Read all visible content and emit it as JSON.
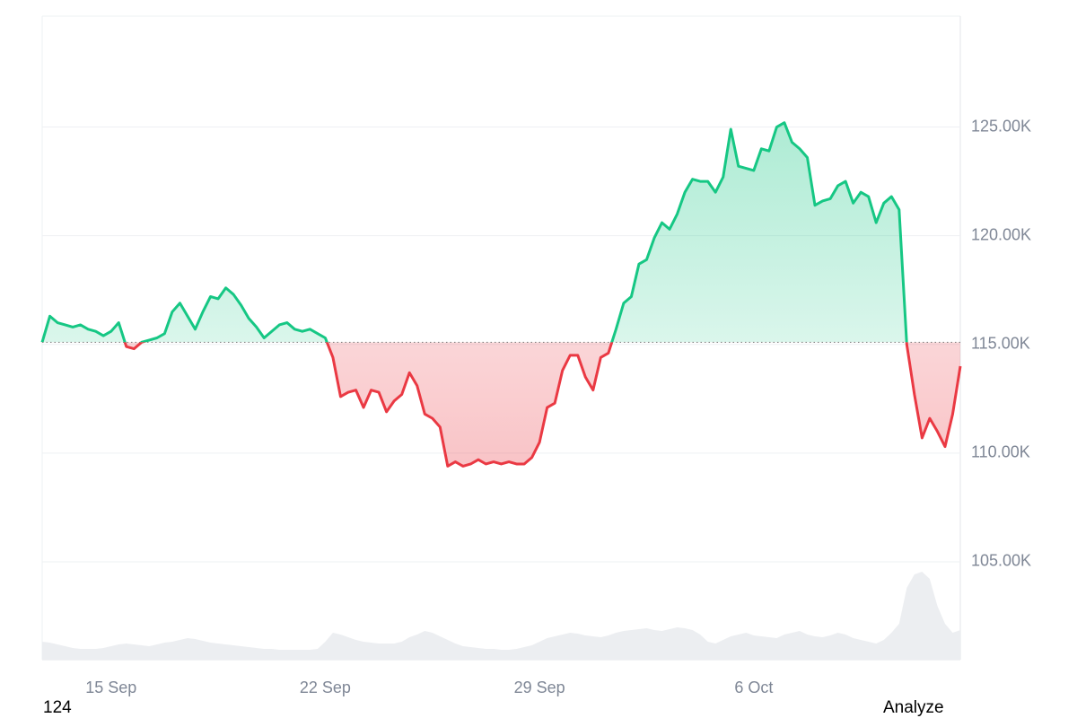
{
  "chart_data": {
    "type": "baseline-line",
    "values": [
      115100,
      116300,
      116000,
      115900,
      115800,
      115900,
      115700,
      115600,
      115400,
      115600,
      116000,
      114900,
      114800,
      115100,
      115200,
      115300,
      115500,
      116500,
      116900,
      116300,
      115700,
      116500,
      117200,
      117100,
      117600,
      117300,
      116800,
      116200,
      115800,
      115300,
      115600,
      115900,
      116000,
      115700,
      115600,
      115700,
      115500,
      115300,
      114400,
      112600,
      112800,
      112900,
      112100,
      112900,
      112800,
      111900,
      112400,
      112700,
      113700,
      113100,
      111800,
      111600,
      111200,
      109400,
      109600,
      109400,
      109500,
      109700,
      109500,
      109600,
      109500,
      109600,
      109500,
      109500,
      109800,
      110500,
      112100,
      112300,
      113800,
      114500,
      114500,
      113500,
      112900,
      114400,
      114600,
      115700,
      116900,
      117200,
      118700,
      118900,
      119900,
      120600,
      120300,
      121000,
      122000,
      122600,
      122500,
      122500,
      122000,
      122700,
      124900,
      123200,
      123100,
      123000,
      124000,
      123900,
      125000,
      125200,
      124300,
      124000,
      123600,
      121400,
      121600,
      121700,
      122300,
      122500,
      121500,
      122000,
      121800,
      120600,
      121500,
      121800,
      121200,
      115000,
      112700,
      110700,
      111600,
      111000,
      110300,
      111800,
      114000
    ],
    "baseline": 115100,
    "up_color": "#16c784",
    "down_color": "#ea3943",
    "volume": [
      20,
      19,
      17,
      15,
      13,
      12,
      12,
      12,
      13,
      15,
      17,
      18,
      17,
      16,
      15,
      17,
      19,
      20,
      22,
      24,
      23,
      21,
      19,
      18,
      17,
      16,
      15,
      14,
      13,
      12,
      12,
      11,
      11,
      11,
      11,
      11,
      12,
      20,
      30,
      28,
      25,
      22,
      20,
      19,
      18,
      18,
      18,
      20,
      25,
      28,
      32,
      30,
      26,
      22,
      18,
      15,
      14,
      13,
      12,
      12,
      11,
      11,
      12,
      14,
      16,
      20,
      24,
      26,
      28,
      30,
      29,
      27,
      26,
      25,
      27,
      30,
      32,
      33,
      34,
      35,
      33,
      32,
      34,
      36,
      35,
      33,
      28,
      20,
      18,
      22,
      26,
      28,
      30,
      27,
      26,
      25,
      24,
      28,
      30,
      32,
      28,
      26,
      25,
      27,
      30,
      28,
      24,
      22,
      20,
      18,
      22,
      30,
      40,
      80,
      95,
      98,
      90,
      60,
      40,
      30,
      33
    ],
    "volume_color": "#eceef1",
    "vlim": [
      0,
      100
    ],
    "xlim": [
      0,
      120
    ],
    "xticks": [
      {
        "value": 9,
        "label": "15 Sep"
      },
      {
        "value": 37,
        "label": "22 Sep"
      },
      {
        "value": 65,
        "label": "29 Sep"
      },
      {
        "value": 93,
        "label": "6 Oct"
      }
    ],
    "ylim": [
      100500,
      130100
    ],
    "yticks": [
      {
        "value": 105000,
        "label": "105.00K"
      },
      {
        "value": 110000,
        "label": "110.00K"
      },
      {
        "value": 115000,
        "label": "115.00K"
      },
      {
        "value": 120000,
        "label": "120.00K"
      },
      {
        "value": 125000,
        "label": "125.00K"
      }
    ],
    "grid": true
  },
  "footer": {
    "left": "124",
    "button": "Analyze"
  }
}
